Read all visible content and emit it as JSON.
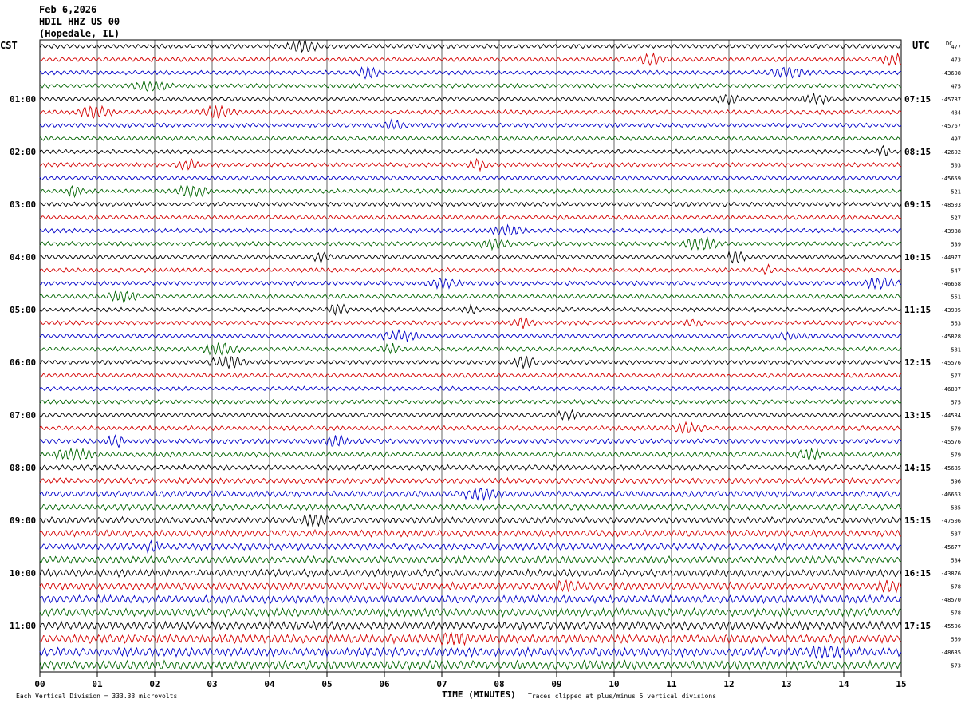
{
  "header": {
    "date": "Feb 6,2026",
    "station": "HDIL HHZ US 00",
    "location": "(Hopedale, IL)"
  },
  "left_zone_label": "CST",
  "right_zone_label": "UTC",
  "dc_label": "DC",
  "footer": {
    "scale_note": "Each Vertical Division =  333.33 microvolts",
    "clip_note": "Traces clipped at plus/minus 5 vertical divisions"
  },
  "colors": {
    "trace_cycle": [
      "#000000",
      "#d40000",
      "#0000c8",
      "#006400"
    ],
    "grid": "#000000",
    "background": "#ffffff"
  },
  "chart_data": {
    "type": "line",
    "title": "HDIL HHZ US 00",
    "xlabel": "TIME (MINUTES)",
    "xlim": [
      0,
      15
    ],
    "x_ticks": [
      "00",
      "01",
      "02",
      "03",
      "04",
      "05",
      "06",
      "07",
      "08",
      "09",
      "10",
      "11",
      "12",
      "13",
      "14",
      "15"
    ],
    "rows_per_hour": 4,
    "row_count": 48,
    "hour_labels_cst": [
      "01:00",
      "02:00",
      "03:00",
      "04:00",
      "05:00",
      "06:00",
      "07:00",
      "08:00",
      "09:00",
      "10:00",
      "11:00"
    ],
    "hour_labels_utc": [
      "07:15",
      "08:15",
      "09:15",
      "10:15",
      "11:15",
      "12:15",
      "13:15",
      "14:15",
      "15:15",
      "16:15",
      "17:15"
    ],
    "hour_label_first_row": 4,
    "dc_offsets": [
      "477",
      "473",
      "-43608",
      "475",
      "-45787",
      "484",
      "-45767",
      "497",
      "-42602",
      "503",
      "-45659",
      "521",
      "-48503",
      "527",
      "-43988",
      "539",
      "-44977",
      "547",
      "-46658",
      "551",
      "-43905",
      "563",
      "-45828",
      "581",
      "-45576",
      "577",
      "-46807",
      "575",
      "-44584",
      "579",
      "-45576",
      "579",
      "-45685",
      "596",
      "-46663",
      "585",
      "-47506",
      "587",
      "-45677",
      "584",
      "-43876",
      "578",
      "-48570",
      "578",
      "-45506",
      "569",
      "-48635",
      "573"
    ]
  }
}
